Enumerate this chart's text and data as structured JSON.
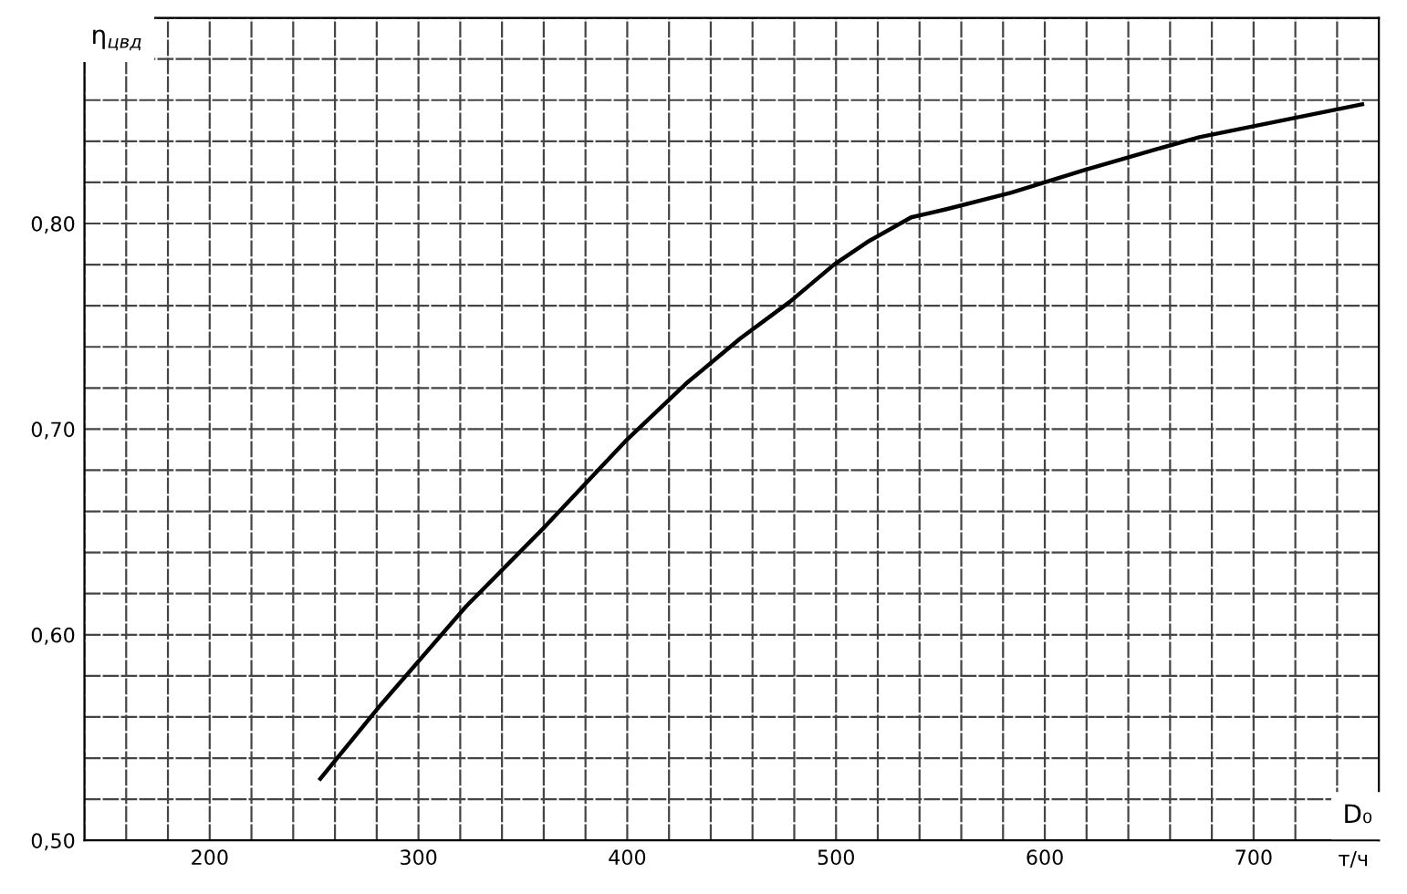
{
  "chart_data": {
    "type": "line",
    "ylabel": "η$_{цвд}$",
    "xlabel": "D₀",
    "annotations": [
      "т/ч"
    ],
    "x": [
      253,
      282,
      323,
      361,
      399,
      428,
      454,
      478,
      499,
      515,
      536,
      553,
      584,
      619,
      653,
      674,
      752
    ],
    "series": [
      {
        "color": "#000000",
        "values": [
          0.53,
          0.566,
          0.614,
          0.653,
          0.694,
          0.722,
          0.744,
          0.762,
          0.78,
          0.791,
          0.803,
          0.807,
          0.815,
          0.826,
          0.836,
          0.842,
          0.858
        ]
      }
    ],
    "xlim": [
      140,
      760
    ],
    "ylim": [
      0.5,
      0.9
    ],
    "xticks": [
      {
        "value": 140,
        "label": null
      },
      {
        "value": 160,
        "label": null
      },
      {
        "value": 180,
        "label": null
      },
      200,
      {
        "value": 220,
        "label": null
      },
      {
        "value": 240,
        "label": null
      },
      {
        "value": 260,
        "label": null
      },
      {
        "value": 280,
        "label": null
      },
      300,
      {
        "value": 320,
        "label": null
      },
      {
        "value": 340,
        "label": null
      },
      {
        "value": 360,
        "label": null
      },
      {
        "value": 380,
        "label": null
      },
      400,
      {
        "value": 420,
        "label": null
      },
      {
        "value": 440,
        "label": null
      },
      {
        "value": 460,
        "label": null
      },
      {
        "value": 480,
        "label": null
      },
      500,
      {
        "value": 520,
        "label": null
      },
      {
        "value": 540,
        "label": null
      },
      {
        "value": 560,
        "label": null
      },
      {
        "value": 580,
        "label": null
      },
      600,
      {
        "value": 620,
        "label": null
      },
      {
        "value": 640,
        "label": null
      },
      {
        "value": 660,
        "label": null
      },
      {
        "value": 680,
        "label": null
      },
      700,
      {
        "value": 720,
        "label": null
      },
      {
        "value": 740,
        "label": null
      },
      {
        "value": 760,
        "label": null
      }
    ],
    "yticks": [
      {
        "value": 0.5,
        "label": "0,50"
      },
      {
        "value": 0.52,
        "label": null
      },
      {
        "value": 0.54,
        "label": null
      },
      {
        "value": 0.56,
        "label": null
      },
      {
        "value": 0.58,
        "label": null
      },
      {
        "value": 0.6,
        "label": "0,60"
      },
      {
        "value": 0.62,
        "label": null
      },
      {
        "value": 0.64,
        "label": null
      },
      {
        "value": 0.66,
        "label": null
      },
      {
        "value": 0.68,
        "label": null
      },
      {
        "value": 0.7,
        "label": "0,70"
      },
      {
        "value": 0.72,
        "label": null
      },
      {
        "value": 0.74,
        "label": null
      },
      {
        "value": 0.76,
        "label": null
      },
      {
        "value": 0.78,
        "label": null
      },
      {
        "value": 0.8,
        "label": "0,80"
      },
      {
        "value": 0.82,
        "label": null
      },
      {
        "value": 0.84,
        "label": null
      },
      {
        "value": 0.86,
        "label": null
      },
      {
        "value": 0.88,
        "label": null
      },
      {
        "value": 0.9,
        "label": null
      }
    ],
    "grid": true,
    "marker": "none",
    "line_style": "solid"
  }
}
